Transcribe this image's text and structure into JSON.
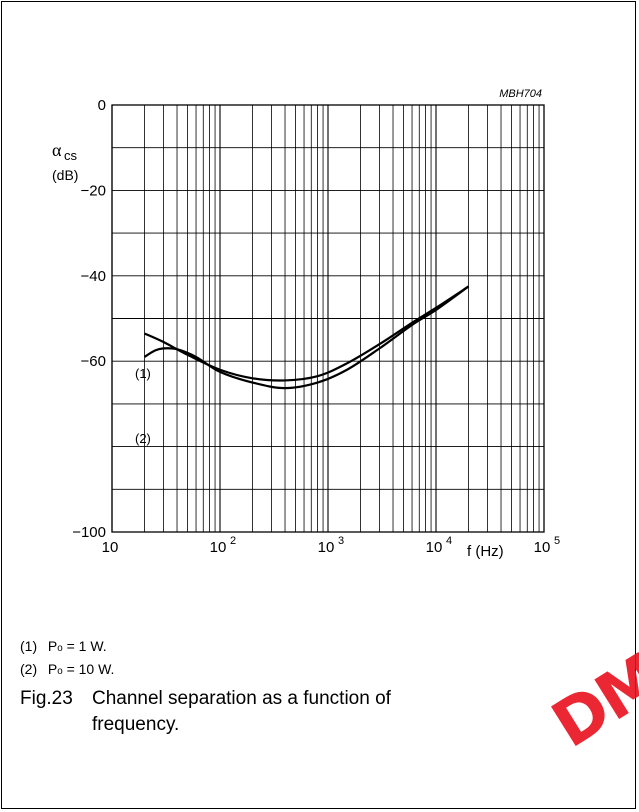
{
  "chart_data": {
    "type": "line",
    "figure_code": "MBH704",
    "ylabel_symbol": "α",
    "ylabel_sub": "cs",
    "ylabel_unit": "(dB)",
    "xlabel": "f (Hz)",
    "x_scale": "log",
    "xlim": [
      10,
      100000
    ],
    "ylim": [
      -100,
      0
    ],
    "y_ticks": [
      "0",
      "−20",
      "−40",
      "−60",
      "−100"
    ],
    "x_ticks": [
      {
        "base": "10",
        "exp": ""
      },
      {
        "base": "10",
        "exp": "2"
      },
      {
        "base": "10",
        "exp": "3"
      },
      {
        "base": "10",
        "exp": "4"
      },
      {
        "base": "10",
        "exp": "5"
      }
    ],
    "grid": true,
    "series": [
      {
        "name": "(1)",
        "x": [
          20,
          30,
          50,
          100,
          200,
          400,
          800,
          1500,
          3000,
          6000,
          10000,
          20000
        ],
        "y": [
          -53.5,
          -55.5,
          -58.5,
          -62,
          -64,
          -64.5,
          -63.5,
          -60.5,
          -56,
          -51,
          -47.5,
          -42.5
        ]
      },
      {
        "name": "(2)",
        "x": [
          20,
          25,
          30,
          40,
          60,
          100,
          200,
          400,
          800,
          1500,
          3000,
          6000,
          10000,
          20000
        ],
        "y": [
          -59,
          -57.5,
          -57,
          -57.2,
          -59,
          -62.5,
          -65,
          -66.3,
          -65,
          -62,
          -57,
          -51.5,
          -48,
          -42.5
        ]
      }
    ]
  },
  "legend": [
    {
      "num": "(1)",
      "text_pre": "P",
      "sub": "o",
      "text_post": " = 1 W."
    },
    {
      "num": "(2)",
      "text_pre": "P",
      "sub": "o",
      "text_post": " = 10 W."
    }
  ],
  "caption": {
    "figno": "Fig.23",
    "line1": "Channel separation as a function of",
    "line2": "frequency."
  },
  "stamp_text": "DM"
}
